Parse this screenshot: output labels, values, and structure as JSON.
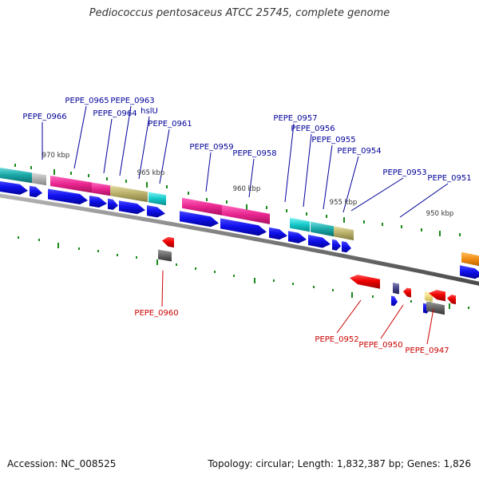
{
  "title": "Pediococcus pentosaceus ATCC 25745, complete genome",
  "footer": {
    "accession": "Accession: NC_008525",
    "summary": "Topology: circular; Length: 1,832,387 bp; Genes: 1,826"
  },
  "colors": {
    "backbone": "#8a8a8a",
    "plus_label": "#000099",
    "minus_label": "#cc0000",
    "tick": "#1a8a1a",
    "cds_plus": "#0000ee",
    "cds_minus": "#ee0000"
  },
  "scale_labels": [
    {
      "text": "970 kbp"
    },
    {
      "text": "965 kbp"
    },
    {
      "text": "960 kbp"
    },
    {
      "text": "955 kbp"
    },
    {
      "text": "950 kbp"
    }
  ],
  "gene_labels_top": [
    {
      "text": "PEPE_0966"
    },
    {
      "text": "PEPE_0965"
    },
    {
      "text": "PEPE_0963"
    },
    {
      "text": "PEPE_0964"
    },
    {
      "text": "hslU"
    },
    {
      "text": "PEPE_0961"
    },
    {
      "text": "PEPE_0959"
    },
    {
      "text": "PEPE_0958"
    },
    {
      "text": "PEPE_0957"
    },
    {
      "text": "PEPE_0956"
    },
    {
      "text": "PEPE_0955"
    },
    {
      "text": "PEPE_0954"
    },
    {
      "text": "PEPE_0953"
    },
    {
      "text": "PEPE_0951"
    }
  ],
  "gene_labels_bottom": [
    {
      "text": "PEPE_0960"
    },
    {
      "text": "PEPE_0952"
    },
    {
      "text": "PEPE_0950"
    },
    {
      "text": "PEPE_0947"
    }
  ]
}
